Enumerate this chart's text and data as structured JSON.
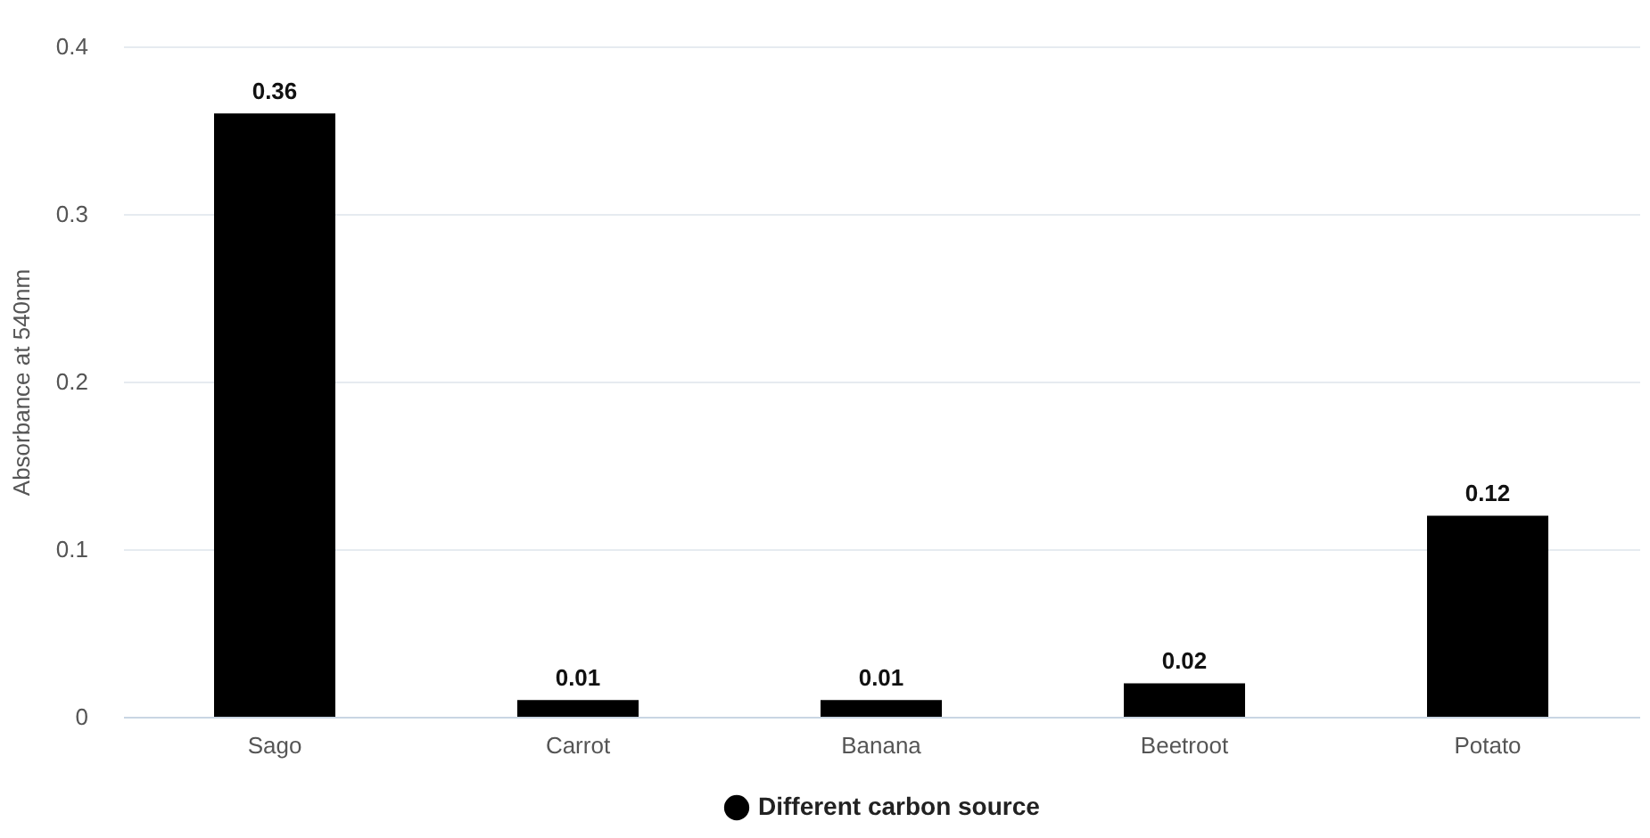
{
  "chart_data": {
    "type": "bar",
    "ylabel": "Absorbance at 540nm",
    "categories": [
      "Sago",
      "Carrot",
      "Banana",
      "Beetroot",
      "Potato"
    ],
    "series": [
      {
        "name": "Different carbon source",
        "color": "#000000",
        "values": [
          0.36,
          0.01,
          0.01,
          0.02,
          0.12
        ]
      }
    ],
    "ylim": [
      0,
      0.4
    ],
    "yticks": [
      0,
      0.1,
      0.2,
      0.3,
      0.4
    ],
    "grid": "y",
    "legend": "bottom",
    "data_labels": true
  }
}
